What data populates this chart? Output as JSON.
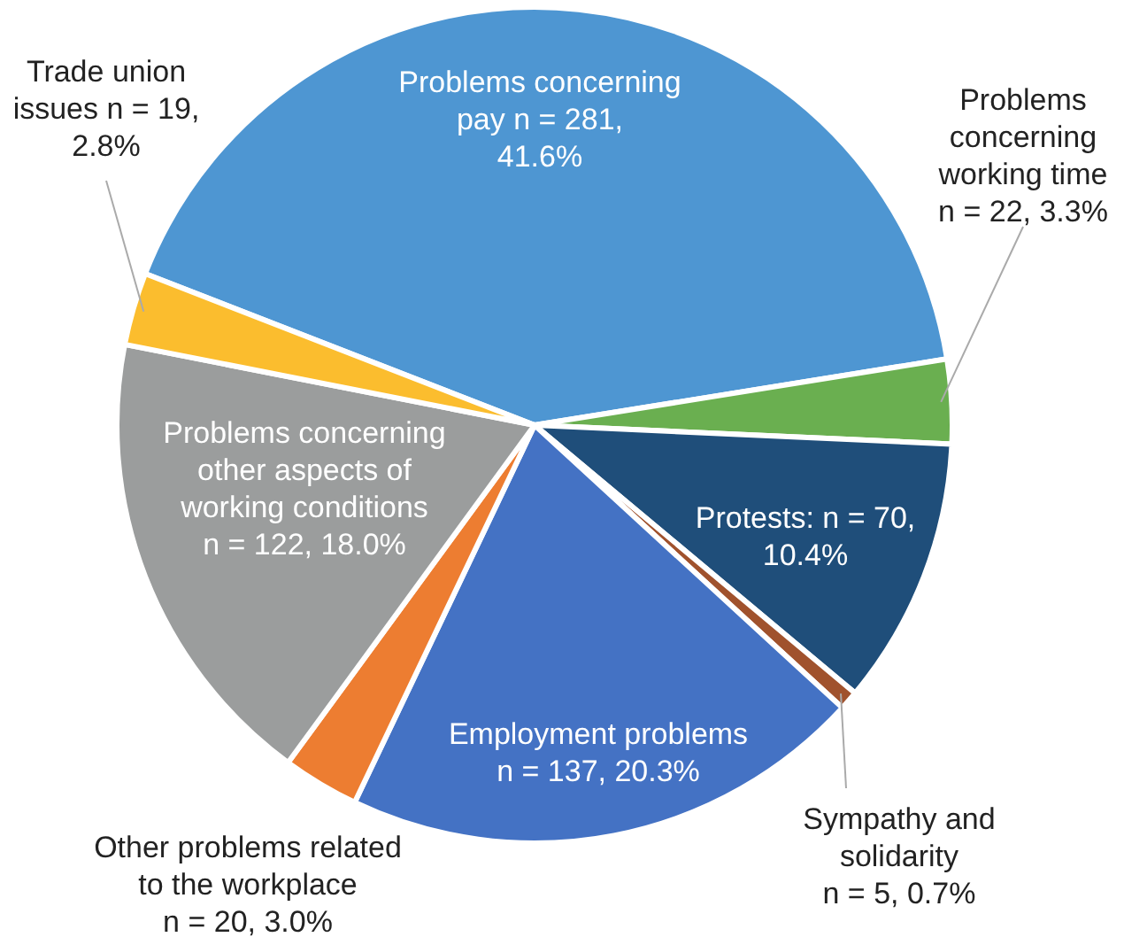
{
  "chart_data": {
    "type": "pie",
    "categories": [
      "Problems concerning\npay",
      "Problems\nconcerning\nworking time",
      "Protests",
      "Sympathy and\nsolidarity",
      "Employment problems",
      "Other problems related\nto the workplace",
      "Problems concerning\nother aspects of\nworking conditions",
      "Trade union\nissues"
    ],
    "values": [
      281,
      22,
      70,
      5,
      137,
      20,
      122,
      19
    ],
    "value_labels": [
      "n = 281,\n41.6%",
      "n = 22, 3.3%",
      "n = 70,\n10.4%",
      "n = 5, 0.7%",
      "n = 137, 20.3%",
      "n = 20, 3.0%",
      "n = 122, 18.0%",
      "n = 19,\n2.8%"
    ],
    "colors": [
      "#4e96d2",
      "#6aaf50",
      "#1f4e7a",
      "#a0522d",
      "#4472c4",
      "#ed7d31",
      "#9b9d9d",
      "#fbbd2e"
    ]
  }
}
